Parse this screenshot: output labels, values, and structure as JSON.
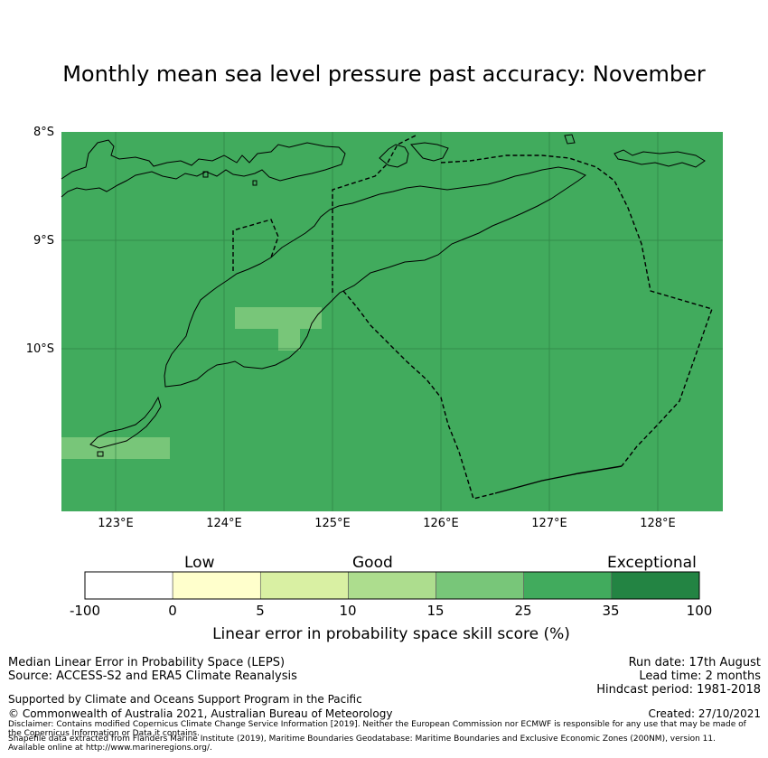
{
  "title": "Monthly mean sea level pressure past accuracy: November",
  "map": {
    "lat_labels": [
      "8°S",
      "9°S",
      "10°S"
    ],
    "lon_labels": [
      "123°E",
      "124°E",
      "125°E",
      "126°E",
      "127°E",
      "128°E"
    ],
    "extent": {
      "lon": [
        122.5,
        128.6
      ],
      "lat": [
        -11.5,
        -8.0
      ]
    },
    "background_color": "#41ab5d",
    "highlight_color": "#78c679",
    "grid": true
  },
  "colorbar": {
    "categories": [
      "Low",
      "Good",
      "Exceptional"
    ],
    "ticks": [
      "-100",
      "0",
      "5",
      "10",
      "15",
      "25",
      "35",
      "100"
    ],
    "colors": [
      "#ffffff",
      "#ffffcc",
      "#d9f0a3",
      "#addd8e",
      "#78c679",
      "#41ab5d",
      "#238443"
    ],
    "label": "Linear error in probability space skill score (%)"
  },
  "footer": {
    "left_line1": "Median Linear Error in Probability Space (LEPS)",
    "left_line2": "Source: ACCESS-S2 and ERA5 Climate Reanalysis",
    "support": "Supported by Climate and Oceans Support Program in the Pacific",
    "copyright": "© Commonwealth of Australia 2021, Australian Bureau of Meteorology",
    "run_date": "Run date: 17th August",
    "lead_time": "Lead time: 2 months",
    "hindcast": "Hindcast period: 1981-2018",
    "created": "Created: 27/10/2021",
    "disclaimer1": "Disclaimer: Contains modified Copernicus Climate Change Service Information [2019]. Neither the European Commission nor ECMWF is responsible for any use that may be made of",
    "disclaimer2": "the Copernicus Information or Data it contains.",
    "shapefile1": "Shapefile data extracted from Flanders Marine Institute (2019), Maritime Boundaries Geodatabase: Maritime Boundaries and Exclusive Economic Zones (200NM), version 11.",
    "shapefile2": "Available online at http://www.marineregions.org/."
  }
}
